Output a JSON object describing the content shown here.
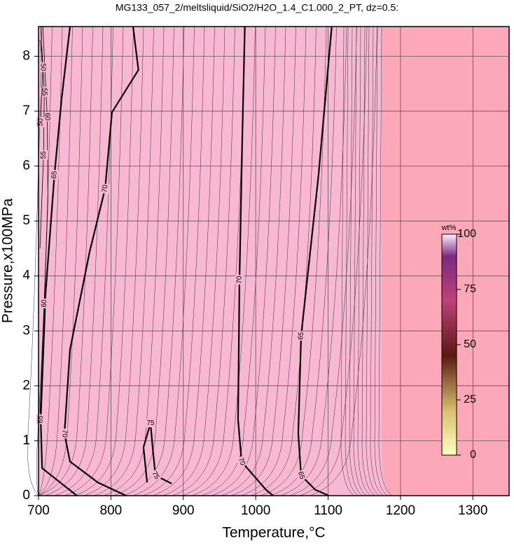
{
  "chart_data": {
    "type": "contour",
    "title": "MG133_057_2/meltsliquid/SiO2/H2O_1.4_C1.000_2_PT, dz=0.5:",
    "x_label": "Temperature,°C",
    "y_label": "Pressure,x100MPa",
    "xlim": [
      700,
      1350
    ],
    "xticks": [
      700,
      800,
      900,
      1000,
      1100,
      1200,
      1300
    ],
    "ylim": [
      0,
      8.54
    ],
    "yticks": [
      0,
      1,
      2,
      3,
      4,
      5,
      6,
      7,
      8
    ],
    "grid": true,
    "contours": [
      {
        "level": 65,
        "x": [
          743.5,
          732,
          722,
          709.7,
          703,
          705,
          753
        ],
        "y": [
          8.54,
          7.24,
          5.84,
          3.68,
          1.39,
          0.5,
          0
        ]
      },
      {
        "level": 70,
        "x": [
          830.6,
          838,
          801.5,
          792,
          770.6,
          743.5,
          735.8,
          743.5,
          782,
          821
        ],
        "y": [
          8.54,
          7.75,
          6.98,
          5.59,
          4.44,
          2.66,
          1.13,
          0.62,
          0.24,
          0
        ]
      },
      {
        "level": 70,
        "x": [
          985,
          981.4,
          977.6,
          975.6,
          980.5,
          1014,
          1024
        ],
        "y": [
          8.54,
          6.48,
          3.93,
          1.39,
          0.62,
          0.11,
          0
        ]
      },
      {
        "level": 65,
        "x": [
          1105,
          1086.8,
          1062.7,
          1058.8,
          1062.7,
          1082,
          1101
        ],
        "y": [
          8.54,
          5.84,
          2.91,
          1.13,
          0.37,
          0.11,
          0
        ]
      },
      {
        "level": 75,
        "x": [
          850,
          845,
          854.7,
          857.6,
          861.5,
          883.8
        ],
        "y": [
          0.24,
          0.88,
          1.32,
          0.88,
          0.37,
          0.22
        ]
      },
      {
        "level": 60,
        "x": [
          706,
          712,
          713,
          708,
          702
        ],
        "y": [
          8.54,
          6.9,
          5.4,
          3.5,
          1.5
        ]
      },
      {
        "level": 55,
        "x": [
          703,
          708,
          707,
          702
        ],
        "y": [
          8.54,
          7.35,
          6.2,
          4.5
        ]
      },
      {
        "level": 50,
        "x": [
          702,
          706,
          703
        ],
        "y": [
          8.3,
          7.8,
          6.8
        ]
      }
    ],
    "colorbar": {
      "label": "wt%",
      "lim": [
        0,
        100
      ],
      "ticks": [
        0,
        25,
        50,
        75,
        100
      ]
    }
  }
}
